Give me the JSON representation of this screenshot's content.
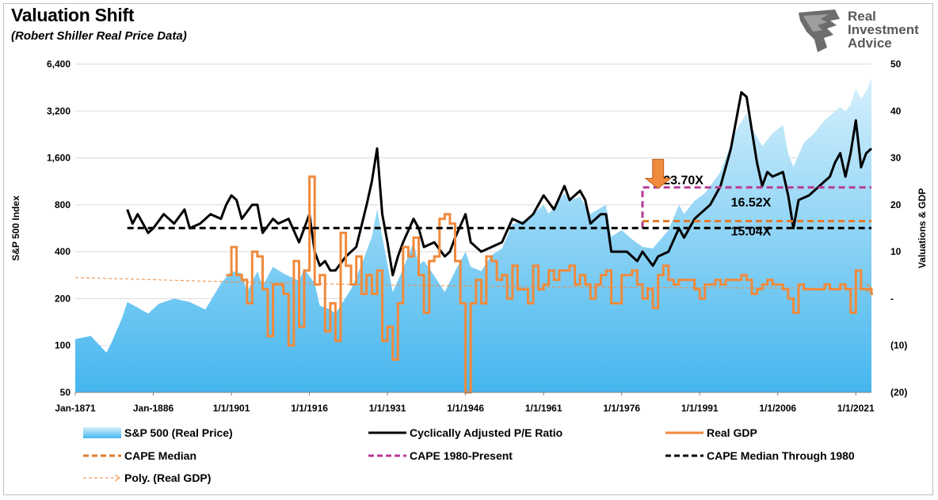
{
  "chart_data": {
    "type": "area+line",
    "title": "Valuation Shift",
    "subtitle": "(Robert Shiller Real Price Data)",
    "ylabel_left": "S&P 500 Index",
    "ylabel_right": "Valuations & GDP",
    "y_left_scale": "log2",
    "y_left_range": [
      50,
      6400
    ],
    "y_left_ticks": [
      "6,400",
      "3,200",
      "1,600",
      "800",
      "400",
      "200",
      "100",
      "50"
    ],
    "y_right_range": [
      -20,
      50
    ],
    "y_right_ticks": [
      "50",
      "40",
      "30",
      "20",
      "10",
      "-",
      "(10)",
      "(20)"
    ],
    "x_range": [
      1871,
      2024
    ],
    "x_ticks": [
      {
        "label": "Jan-1871",
        "year": 1871
      },
      {
        "label": "Jan-1886",
        "year": 1886
      },
      {
        "label": "1/1/1901",
        "year": 1901
      },
      {
        "label": "1/1/1916",
        "year": 1916
      },
      {
        "label": "1/1/1931",
        "year": 1931
      },
      {
        "label": "1/1/1946",
        "year": 1946
      },
      {
        "label": "1/1/1961",
        "year": 1961
      },
      {
        "label": "1/1/1976",
        "year": 1976
      },
      {
        "label": "1/1/1991",
        "year": 1991
      },
      {
        "label": "1/1/2006",
        "year": 2006
      },
      {
        "label": "1/1/2021",
        "year": 2021
      }
    ],
    "series": [
      {
        "name": "S&P 500 (Real Price)",
        "axis": "left",
        "style": "area",
        "color": "#5bc0f0",
        "x": [
          1871,
          1874,
          1877,
          1878,
          1880,
          1881,
          1883,
          1885,
          1887,
          1890,
          1893,
          1896,
          1899,
          1901,
          1903,
          1904,
          1906,
          1907,
          1909,
          1911,
          1914,
          1915,
          1917,
          1918,
          1920,
          1921,
          1924,
          1926,
          1928,
          1929,
          1930,
          1932,
          1934,
          1936,
          1937,
          1938,
          1940,
          1942,
          1944,
          1946,
          1947,
          1949,
          1951,
          1953,
          1955,
          1958,
          1961,
          1962,
          1965,
          1966,
          1968,
          1970,
          1973,
          1974,
          1976,
          1978,
          1980,
          1982,
          1985,
          1987,
          1988,
          1990,
          1992,
          1995,
          1998,
          2000,
          2001,
          2003,
          2005,
          2007,
          2008,
          2009,
          2011,
          2013,
          2015,
          2018,
          2019,
          2020,
          2021,
          2022,
          2023,
          2024
        ],
        "values": [
          110,
          115,
          90,
          105,
          150,
          190,
          175,
          160,
          185,
          200,
          190,
          170,
          250,
          300,
          290,
          220,
          300,
          240,
          320,
          290,
          260,
          310,
          250,
          180,
          170,
          160,
          230,
          330,
          500,
          750,
          500,
          220,
          310,
          460,
          330,
          350,
          280,
          220,
          300,
          400,
          320,
          300,
          380,
          420,
          600,
          650,
          800,
          700,
          950,
          850,
          900,
          700,
          800,
          500,
          550,
          480,
          430,
          420,
          550,
          800,
          700,
          850,
          950,
          1300,
          2400,
          3100,
          2500,
          1900,
          2300,
          2600,
          1700,
          1400,
          2000,
          2300,
          2800,
          3400,
          3200,
          3500,
          4500,
          3800,
          4300,
          5200
        ]
      },
      {
        "name": "Cyclically Adjusted P/E Ratio",
        "axis": "right",
        "style": "line",
        "color": "#000000",
        "x": [
          1881,
          1882,
          1883,
          1885,
          1886,
          1888,
          1890,
          1892,
          1893,
          1895,
          1897,
          1899,
          1900,
          1901,
          1902,
          1903,
          1905,
          1906,
          1907,
          1909,
          1910,
          1912,
          1914,
          1916,
          1917,
          1918,
          1919,
          1920,
          1921,
          1923,
          1925,
          1927,
          1928,
          1929,
          1930,
          1931,
          1932,
          1933,
          1934,
          1936,
          1937,
          1938,
          1940,
          1942,
          1943,
          1944,
          1946,
          1947,
          1949,
          1951,
          1953,
          1955,
          1957,
          1959,
          1961,
          1963,
          1965,
          1966,
          1968,
          1969,
          1970,
          1972,
          1973,
          1974,
          1975,
          1977,
          1979,
          1980,
          1982,
          1983,
          1985,
          1987,
          1988,
          1990,
          1991,
          1993,
          1995,
          1997,
          1998,
          1999,
          2000,
          2001,
          2002,
          2003,
          2004,
          2005,
          2007,
          2008,
          2009,
          2010,
          2012,
          2014,
          2016,
          2017,
          2018,
          2019,
          2020,
          2021,
          2022,
          2023,
          2024
        ],
        "values": [
          19,
          16,
          18,
          14,
          15,
          18,
          16,
          19,
          15,
          16,
          18,
          17,
          20,
          22,
          21,
          17,
          20,
          20,
          14,
          17,
          16,
          17,
          12,
          18,
          10,
          7,
          8,
          6,
          6,
          9,
          11,
          20,
          25,
          32,
          18,
          12,
          5,
          9,
          12,
          17,
          15,
          11,
          12,
          9,
          10,
          13,
          18,
          12,
          10,
          11,
          12,
          17,
          16,
          18,
          22,
          19,
          24,
          21,
          23,
          21,
          16,
          18,
          18,
          10,
          10,
          10,
          8,
          10,
          7,
          9,
          10,
          15,
          13,
          17,
          18,
          20,
          24,
          32,
          38,
          44,
          43,
          36,
          29,
          24,
          27,
          26,
          27,
          22,
          15,
          21,
          22,
          24,
          26,
          29,
          31,
          26,
          31,
          38,
          28,
          31,
          32
        ]
      },
      {
        "name": "Real GDP",
        "axis": "right",
        "style": "step",
        "color": "#f08a3c",
        "x": [
          1900,
          1901,
          1902,
          1903,
          1904,
          1905,
          1906,
          1907,
          1908,
          1909,
          1910,
          1911,
          1912,
          1913,
          1914,
          1915,
          1916,
          1917,
          1918,
          1919,
          1920,
          1921,
          1922,
          1923,
          1924,
          1925,
          1926,
          1927,
          1928,
          1929,
          1930,
          1931,
          1932,
          1933,
          1934,
          1935,
          1936,
          1937,
          1938,
          1939,
          1940,
          1941,
          1942,
          1943,
          1944,
          1945,
          1946,
          1947,
          1948,
          1949,
          1950,
          1951,
          1952,
          1953,
          1954,
          1955,
          1956,
          1957,
          1958,
          1959,
          1960,
          1961,
          1962,
          1963,
          1964,
          1965,
          1966,
          1967,
          1968,
          1969,
          1970,
          1971,
          1972,
          1973,
          1974,
          1975,
          1976,
          1977,
          1978,
          1979,
          1980,
          1981,
          1982,
          1983,
          1984,
          1985,
          1986,
          1987,
          1988,
          1989,
          1990,
          1991,
          1992,
          1993,
          1994,
          1995,
          1996,
          1997,
          1998,
          1999,
          2000,
          2001,
          2002,
          2003,
          2004,
          2005,
          2006,
          2007,
          2008,
          2009,
          2010,
          2011,
          2012,
          2013,
          2014,
          2015,
          2016,
          2017,
          2018,
          2019,
          2020,
          2021,
          2022,
          2023,
          2024
        ],
        "values": [
          5,
          11,
          5,
          4,
          -1,
          10,
          9,
          2,
          -8,
          3,
          3,
          1,
          -10,
          8,
          -6,
          6,
          26,
          3,
          5,
          -7,
          -1,
          -9,
          14,
          7,
          3,
          9,
          1,
          5,
          1,
          6,
          -9,
          -6,
          -13,
          -1,
          11,
          9,
          13,
          5,
          -3,
          8,
          9,
          17,
          18,
          16,
          8,
          -1,
          -21,
          -1,
          4,
          -1,
          9,
          8,
          4,
          5,
          0,
          7,
          2,
          2,
          -1,
          7,
          2,
          3,
          6,
          4,
          6,
          6,
          7,
          3,
          5,
          3,
          0,
          3,
          5,
          6,
          -1,
          -1,
          5,
          5,
          6,
          3,
          0,
          2,
          -2,
          5,
          7,
          4,
          3,
          4,
          4,
          4,
          2,
          0,
          3,
          3,
          4,
          3,
          4,
          4,
          4,
          5,
          4,
          1,
          2,
          3,
          4,
          3,
          3,
          2,
          0,
          -3,
          3,
          2,
          2,
          2,
          2,
          3,
          2,
          2,
          3,
          2,
          -3,
          6,
          2,
          2,
          1
        ]
      },
      {
        "name": "CAPE Median",
        "axis": "right",
        "style": "dashed",
        "color": "#e07b2a",
        "x": [
          1980,
          2024
        ],
        "values": [
          16.52,
          16.52
        ]
      },
      {
        "name": "CAPE 1980-Present",
        "axis": "right",
        "style": "dashed",
        "color": "#b83a95",
        "x": [
          1980,
          1980,
          2024
        ],
        "values": [
          15.04,
          23.7,
          23.7
        ]
      },
      {
        "name": "CAPE Median Through 1980",
        "axis": "right",
        "style": "dashed",
        "color": "#000000",
        "x": [
          1881,
          2024
        ],
        "values": [
          15.04,
          15.04
        ]
      },
      {
        "name": "Poly. (Real GDP)",
        "axis": "right",
        "style": "thin-dashed",
        "color": "#f08a3c",
        "x": [
          1871,
          1900,
          1930,
          1960,
          1990,
          2024
        ],
        "values": [
          4.5,
          3.6,
          2.9,
          2.5,
          2.3,
          2.2
        ]
      }
    ],
    "annotations": [
      {
        "text": "23.70X",
        "x": 1984,
        "y": 23.7
      },
      {
        "text": "16.52X",
        "x": 1997,
        "y": 19.0
      },
      {
        "text": "15.04X",
        "x": 1997,
        "y": 12.8
      }
    ],
    "arrow": {
      "x": 1983,
      "y_top": 28,
      "y_bottom": 23.5,
      "color": "#f08a3c"
    },
    "legend": {
      "placement": "bottom",
      "items": [
        "S&P 500 (Real Price)",
        "Cyclically Adjusted P/E Ratio",
        "Real GDP",
        "CAPE Median",
        "CAPE 1980-Present",
        "CAPE Median Through 1980",
        "Poly. (Real GDP)"
      ]
    },
    "grid": "horizontal"
  },
  "logo": {
    "line1": "Real",
    "line2": "Investment",
    "line3": "Advice",
    "icon": "eagle-logo-icon"
  }
}
